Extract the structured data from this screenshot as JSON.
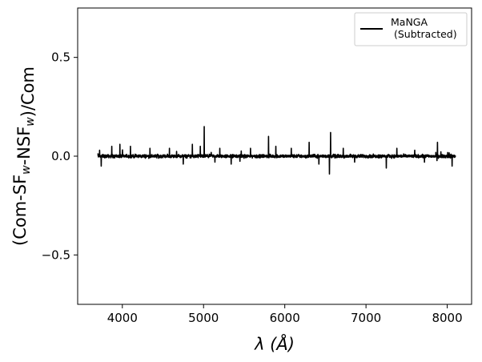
{
  "chart_data": {
    "type": "line",
    "title": "",
    "xlabel": "λ (Å)",
    "ylabel": "(Com-SF_w-NSF_w)/Com",
    "xlim": [
      3450,
      8300
    ],
    "ylim": [
      -0.75,
      0.75
    ],
    "x_ticks": [
      4000,
      5000,
      6000,
      7000,
      8000
    ],
    "x_tick_labels": [
      "4000",
      "5000",
      "6000",
      "7000",
      "8000"
    ],
    "y_ticks": [
      -0.5,
      0.0,
      0.5
    ],
    "y_tick_labels": [
      "−0.5",
      "0.0",
      "0.5"
    ],
    "grid": false,
    "legend": {
      "placement": "top-right",
      "entries": [
        "MaNGA\n (Subtracted)"
      ]
    },
    "series": [
      {
        "name": "MaNGA\n (Subtracted)",
        "color": "#000000",
        "x_start": 3700,
        "x_end": 8100,
        "baseline": 0.0,
        "noise_amplitude": 0.012,
        "spikes": [
          {
            "x": 3720,
            "y": 0.03
          },
          {
            "x": 3740,
            "y": -0.05
          },
          {
            "x": 3870,
            "y": 0.05
          },
          {
            "x": 3970,
            "y": 0.06
          },
          {
            "x": 4100,
            "y": 0.05
          },
          {
            "x": 4340,
            "y": 0.04
          },
          {
            "x": 4580,
            "y": 0.04
          },
          {
            "x": 4750,
            "y": -0.04
          },
          {
            "x": 4862,
            "y": 0.06
          },
          {
            "x": 4960,
            "y": 0.05
          },
          {
            "x": 5008,
            "y": 0.15
          },
          {
            "x": 5140,
            "y": -0.03
          },
          {
            "x": 5200,
            "y": 0.04
          },
          {
            "x": 5340,
            "y": -0.04
          },
          {
            "x": 5577,
            "y": 0.04
          },
          {
            "x": 5800,
            "y": 0.1
          },
          {
            "x": 5890,
            "y": 0.05
          },
          {
            "x": 6080,
            "y": 0.04
          },
          {
            "x": 6300,
            "y": 0.07
          },
          {
            "x": 6420,
            "y": -0.04
          },
          {
            "x": 6550,
            "y": -0.09
          },
          {
            "x": 6563,
            "y": 0.12
          },
          {
            "x": 6720,
            "y": 0.04
          },
          {
            "x": 6860,
            "y": -0.03
          },
          {
            "x": 7250,
            "y": -0.06
          },
          {
            "x": 7380,
            "y": 0.04
          },
          {
            "x": 7600,
            "y": 0.03
          },
          {
            "x": 7880,
            "y": 0.07
          },
          {
            "x": 8060,
            "y": -0.05
          }
        ]
      }
    ]
  }
}
